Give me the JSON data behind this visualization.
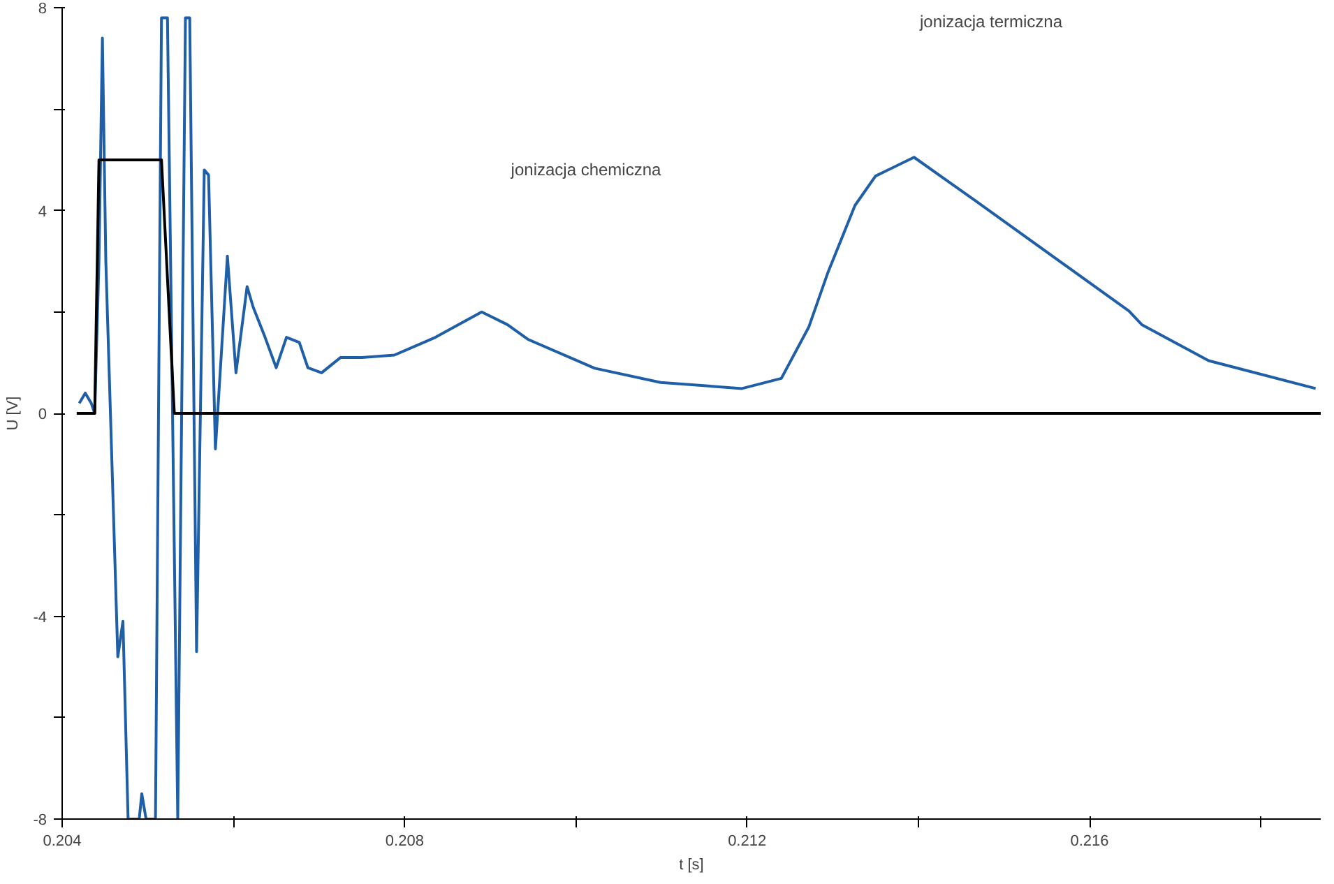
{
  "chart_data": {
    "type": "line",
    "xlabel": "t [s]",
    "ylabel": "U [V]",
    "xlim": [
      0.204,
      0.2187
    ],
    "ylim": [
      -8,
      8
    ],
    "xticks": [
      0.204,
      {
        "value": 0.206,
        "label": null
      },
      0.208,
      {
        "value": 0.21,
        "label": null
      },
      0.212,
      {
        "value": 0.214,
        "label": null
      },
      0.216,
      {
        "value": 0.218,
        "label": null
      }
    ],
    "yticks": [
      -8,
      {
        "value": -6,
        "label": null
      },
      -4,
      {
        "value": -2,
        "label": null
      },
      0,
      {
        "value": 2,
        "label": null
      },
      4,
      {
        "value": 6,
        "label": null
      },
      8
    ],
    "grid": false,
    "marker": "none",
    "line_style": "solid",
    "series": [
      {
        "color": "#1f5fa8",
        "x": [
          0.2042,
          0.20427,
          0.20434,
          0.20438,
          0.20443,
          0.20447,
          0.20451,
          0.20465,
          0.20471,
          0.20477,
          0.2049,
          0.20493,
          0.20498,
          0.20509,
          0.20516,
          0.20523,
          0.20535,
          0.20544,
          0.20549,
          0.20557,
          0.20566,
          0.20571,
          0.20579,
          0.20593,
          0.20603,
          0.20616,
          0.20623,
          0.20637,
          0.2065,
          0.20662,
          0.20677,
          0.20687,
          0.20703,
          0.20725,
          0.2075,
          0.20788,
          0.20836,
          0.2089,
          0.2092,
          0.20944,
          0.21022,
          0.21099,
          0.21194,
          0.2124,
          0.21272,
          0.21294,
          0.21326,
          0.2135,
          0.21395,
          0.21466,
          0.21646,
          0.21661,
          0.21739,
          0.21864
        ],
        "values": [
          0.2,
          0.4,
          0.2,
          0,
          3,
          7.4,
          3,
          -4.8,
          -4.1,
          -8,
          -8,
          -7.5,
          -8,
          -8,
          7.8,
          7.8,
          -8,
          7.8,
          7.8,
          -4.7,
          4.8,
          4.7,
          -0.7,
          3.1,
          0.8,
          2.5,
          2.1,
          1.5,
          0.9,
          1.5,
          1.4,
          0.9,
          0.8,
          1.1,
          1.1,
          1.15,
          1.5,
          2.0,
          1.75,
          1.46,
          0.89,
          0.61,
          0.49,
          0.69,
          1.7,
          2.76,
          4.1,
          4.68,
          5.05,
          4.2,
          2.02,
          1.75,
          1.04,
          0.49
        ]
      },
      {
        "color": "#000000",
        "x": [
          0.20417,
          0.20438,
          0.20443,
          0.20516,
          0.20531,
          0.2187
        ],
        "values": [
          0,
          0,
          5,
          5,
          0,
          0
        ]
      }
    ],
    "annotations": [
      "jonizacja chemiczna",
      "jonizacja termiczna"
    ]
  }
}
